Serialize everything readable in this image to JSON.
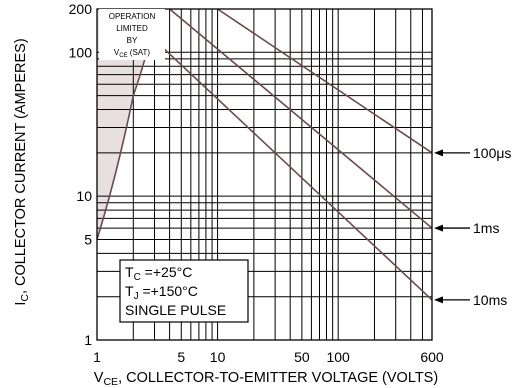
{
  "chart_data": {
    "type": "line",
    "x_scale": "log",
    "y_scale": "log",
    "xlim": [
      1,
      600
    ],
    "ylim": [
      1,
      200
    ],
    "grid": true,
    "xlabel": "V CE, COLLECTOR-TO-EMITTER VOLTAGE (VOLTS)",
    "xlabel_main": "V",
    "xlabel_sub": "CE",
    "xlabel_rest": ", COLLECTOR-TO-EMITTER VOLTAGE (VOLTS)",
    "ylabel_main": "I",
    "ylabel_sub": "C",
    "ylabel_rest": ", COLLECTOR CURRENT (AMPERES)",
    "x_ticks": [
      {
        "value": 1,
        "label": "1"
      },
      {
        "value": 5,
        "label": "5"
      },
      {
        "value": 10,
        "label": "10"
      },
      {
        "value": 50,
        "label": "50"
      },
      {
        "value": 100,
        "label": "100"
      },
      {
        "value": 600,
        "label": "600"
      }
    ],
    "y_ticks": [
      {
        "value": 1,
        "label": "1"
      },
      {
        "value": 5,
        "label": "5"
      },
      {
        "value": 10,
        "label": "10"
      },
      {
        "value": 100,
        "label": "100"
      },
      {
        "value": 200,
        "label": "200"
      }
    ],
    "series": [
      {
        "name": "100μs",
        "x": [
          10,
          600
        ],
        "y": [
          200,
          20
        ]
      },
      {
        "name": "1ms",
        "x": [
          4,
          600
        ],
        "y": [
          200,
          6
        ]
      },
      {
        "name": "10ms",
        "x": [
          1.6,
          600
        ],
        "y": [
          200,
          1.9
        ]
      }
    ],
    "vce_sat_boundary": {
      "x": [
        1,
        2,
        3.2
      ],
      "y": [
        5,
        50,
        200
      ]
    },
    "conditions": {
      "tc_main": "T",
      "tc_sub": "C",
      "tc_rest": " =+25°C",
      "tj_main": "T",
      "tj_sub": "J",
      "tj_rest": " =+150°C",
      "pulse": "SINGLE PULSE"
    },
    "annotation": {
      "line1": "OPERATION",
      "line2": "LIMITED",
      "line3": "BY",
      "line4_main": "V",
      "line4_sub": "CE",
      "line4_rest": " (SAT)"
    },
    "colors": {
      "grid": "#000000",
      "curve": "#6b4a4a",
      "shade": "#e8e0e0",
      "arrow": "#000000"
    }
  }
}
